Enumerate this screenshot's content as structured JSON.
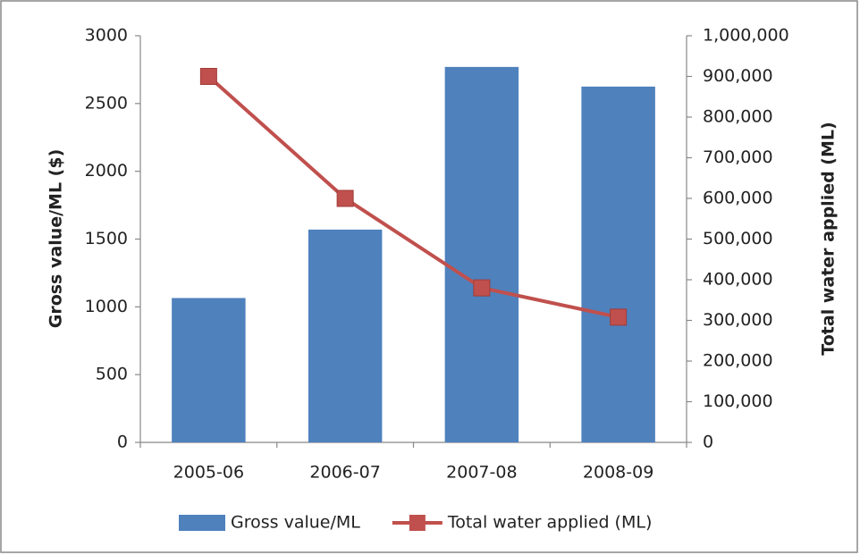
{
  "chart_data": {
    "type": "bar",
    "categories": [
      "2005-06",
      "2006-07",
      "2007-08",
      "2008-09"
    ],
    "series": [
      {
        "name": "Gross value/ML",
        "type": "bar",
        "color": "#4f81bd",
        "values": [
          1065,
          1570,
          2770,
          2625
        ]
      },
      {
        "name": "Total water applied (ML)",
        "type": "line",
        "axis": "y2",
        "color": "#c0504d",
        "values": [
          900000,
          600000,
          380000,
          308000
        ]
      }
    ],
    "ylabel": "Gross value/ML ($)",
    "y2label": "Total water applied (ML)",
    "ylim": [
      0,
      3000
    ],
    "yticks": [
      0,
      500,
      1000,
      1500,
      2000,
      2500,
      3000
    ],
    "y2lim": [
      0,
      1000000
    ],
    "y2ticks": [
      0,
      {
        "value": 100000,
        "label": "100,000"
      },
      {
        "value": 200000,
        "label": "200,000"
      },
      {
        "value": 300000,
        "label": "300,000"
      },
      {
        "value": 400000,
        "label": "400,000"
      },
      {
        "value": 500000,
        "label": "500,000"
      },
      {
        "value": 600000,
        "label": "600,000"
      },
      {
        "value": 700000,
        "label": "700,000"
      },
      {
        "value": 800000,
        "label": "800,000"
      },
      {
        "value": 900000,
        "label": "900,000"
      },
      {
        "value": 1000000,
        "label": "1,000,000"
      }
    ],
    "grid": false,
    "legend": "bottom"
  }
}
